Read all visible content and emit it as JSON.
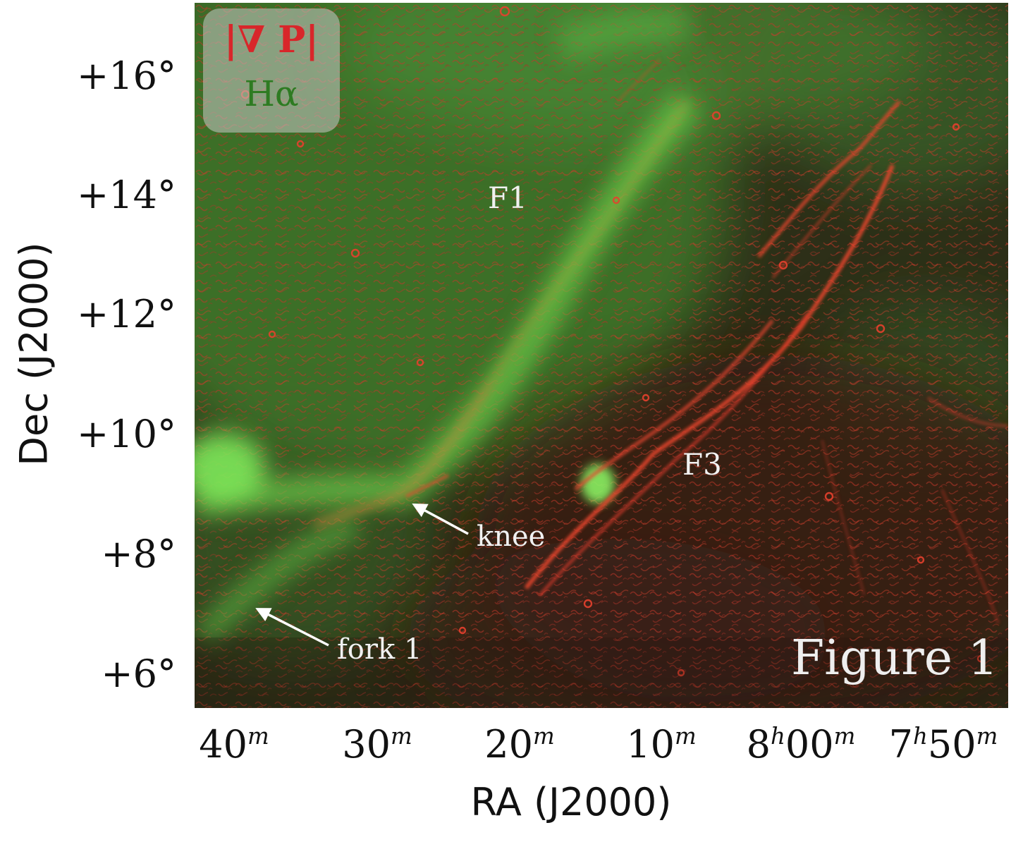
{
  "axes": {
    "xlabel": "RA (J2000)",
    "ylabel": "Dec (J2000)",
    "yticks": [
      "+16°",
      "+14°",
      "+12°",
      "+10°",
      "+8°",
      "+6°"
    ],
    "xticks": [
      {
        "main": "40",
        "sup": "m"
      },
      {
        "main": "30",
        "sup": "m"
      },
      {
        "main": "20",
        "sup": "m"
      },
      {
        "main": "10",
        "sup": "m"
      },
      {
        "pre": "8",
        "presup": "h",
        "main": "00",
        "sup": "m"
      },
      {
        "pre": "7",
        "presup": "h",
        "main": "50",
        "sup": "m"
      }
    ]
  },
  "legend": {
    "red_label": "|∇ P|",
    "green_label": "Hα",
    "red_color": "#d8262a",
    "green_color": "#2e7b22"
  },
  "annotations": {
    "f1": "F1",
    "f3": "F3",
    "knee": "knee",
    "fork": "fork 1"
  },
  "figure_label": "Figure 1",
  "colors": {
    "background": "#2f3a1b",
    "halpha_green": "#4fb93a",
    "polarization_red": "#e03a2a"
  }
}
